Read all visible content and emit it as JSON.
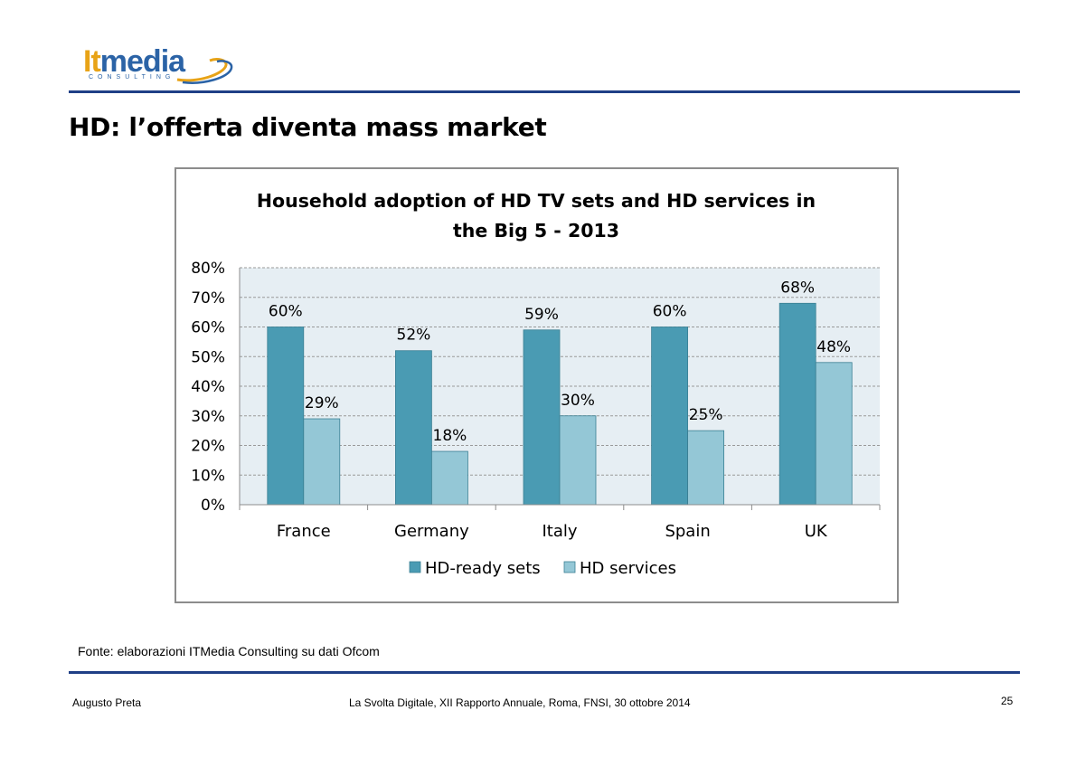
{
  "header": {
    "logo": {
      "name": "itmedia-logo",
      "text_lt": "It",
      "text_media": "media",
      "subtext": "CONSULTING",
      "color_orange": "#e8a317",
      "color_blue": "#2b63a6"
    },
    "rule_color": "#1f3f86"
  },
  "slide": {
    "title": "HD: l’offerta diventa mass market",
    "source": "Fonte: elaborazioni ITMedia Consulting su dati Ofcom"
  },
  "footer": {
    "author": "Augusto Preta",
    "event": "La Svolta Digitale, XII Rapporto Annuale, Roma, FNSI, 30 ottobre 2014",
    "page": "25"
  },
  "chart_data": {
    "type": "bar",
    "title": "Household adoption of HD TV sets and HD services in the Big 5 - 2013",
    "title_lines": [
      "Household adoption of HD TV sets and HD services in",
      "the Big 5 - 2013"
    ],
    "categories": [
      "France",
      "Germany",
      "Italy",
      "Spain",
      "UK"
    ],
    "series": [
      {
        "name": "HD-ready sets",
        "values": [
          60,
          52,
          59,
          60,
          68
        ],
        "labels": [
          "60%",
          "52%",
          "59%",
          "60%",
          "68%"
        ],
        "color": "#4a9bb3"
      },
      {
        "name": "HD services",
        "values": [
          29,
          18,
          30,
          25,
          48
        ],
        "labels": [
          "29%",
          "18%",
          "30%",
          "25%",
          "48%"
        ],
        "color": "#94c7d6"
      }
    ],
    "ylim": [
      0,
      80
    ],
    "yticks": [
      0,
      10,
      20,
      30,
      40,
      50,
      60,
      70,
      80
    ],
    "ytick_labels": [
      "0%",
      "10%",
      "20%",
      "30%",
      "40%",
      "50%",
      "60%",
      "70%",
      "80%"
    ],
    "xlabel": "",
    "ylabel": "",
    "grid": "horizontal dashed",
    "plot_background": "#e6eef3",
    "legend_position": "bottom"
  }
}
